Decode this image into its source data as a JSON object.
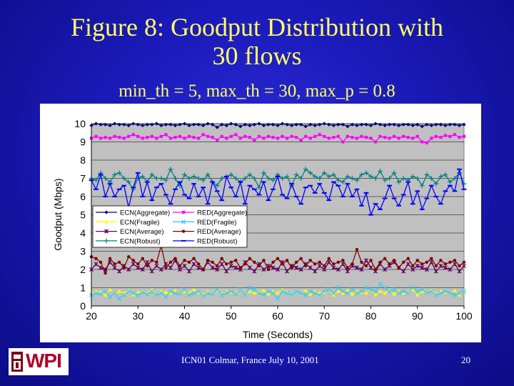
{
  "slide": {
    "title_line1": "Figure 8: Goodput Distribution with",
    "title_line2": "30 flows",
    "subtitle": "min_th = 5, max_th = 30, max_p = 0.8",
    "footer": "ICN01 Colmar, France  July 10, 2001",
    "page_number": "20",
    "logo_text": "WPI"
  },
  "colors": {
    "title": "#ffff66",
    "plot_bg": "#c0c0c0",
    "ecn_aggregate": "#000080",
    "red_aggregate": "#ff00ff",
    "ecn_fragile": "#ffff00",
    "red_fragile": "#33ccff",
    "ecn_average": "#660066",
    "red_average": "#800000",
    "ecn_robust": "#008080",
    "red_robust": "#0000ff"
  },
  "chart_data": {
    "type": "line",
    "title": "",
    "xlabel": "Time (Seconds)",
    "ylabel": "Goodput (Mbps)",
    "xlim": [
      20,
      100
    ],
    "ylim": [
      0,
      10
    ],
    "xticks": [
      "20",
      "30",
      "40",
      "50",
      "60",
      "70",
      "80",
      "90",
      "100"
    ],
    "yticks": [
      "0",
      "1",
      "2",
      "3",
      "4",
      "5",
      "6",
      "7",
      "8",
      "9",
      "10"
    ],
    "grid": true,
    "legend_position": "lower-left",
    "x": [
      20,
      21,
      22,
      23,
      24,
      25,
      26,
      27,
      28,
      29,
      30,
      31,
      32,
      33,
      34,
      35,
      36,
      37,
      38,
      39,
      40,
      41,
      42,
      43,
      44,
      45,
      46,
      47,
      48,
      49,
      50,
      51,
      52,
      53,
      54,
      55,
      56,
      57,
      58,
      59,
      60,
      61,
      62,
      63,
      64,
      65,
      66,
      67,
      68,
      69,
      70,
      71,
      72,
      73,
      74,
      75,
      76,
      77,
      78,
      79,
      80,
      81,
      82,
      83,
      84,
      85,
      86,
      87,
      88,
      89,
      90,
      91,
      92,
      93,
      94,
      95,
      96,
      97,
      98,
      99,
      100
    ],
    "series": [
      {
        "name": "ECN(Aggregate)",
        "marker": "diamond",
        "values": [
          9.9,
          10.0,
          9.95,
          9.95,
          9.9,
          10.0,
          9.95,
          9.95,
          9.9,
          10.0,
          9.95,
          9.9,
          9.95,
          9.95,
          10.0,
          9.9,
          9.95,
          9.95,
          9.9,
          9.95,
          10.0,
          9.9,
          9.95,
          9.95,
          9.9,
          10.0,
          9.95,
          9.8,
          9.95,
          9.9,
          10.0,
          9.95,
          9.85,
          9.95,
          9.9,
          9.95,
          10.0,
          9.9,
          9.95,
          9.95,
          9.9,
          10.0,
          9.95,
          9.9,
          9.95,
          9.95,
          9.85,
          9.95,
          9.9,
          9.95,
          10.0,
          9.95,
          9.9,
          9.95,
          9.95,
          9.85,
          9.95,
          9.9,
          9.95,
          9.95,
          9.9,
          10.0,
          9.95,
          9.9,
          9.95,
          9.95,
          9.9,
          9.95,
          9.95,
          9.9,
          9.95,
          9.85,
          9.95,
          9.9,
          9.95,
          9.95,
          9.9,
          9.95,
          9.95,
          9.9,
          9.95
        ]
      },
      {
        "name": "RED(Aggregate)",
        "marker": "square",
        "values": [
          9.2,
          9.3,
          9.2,
          9.25,
          9.2,
          9.3,
          9.25,
          9.2,
          9.3,
          9.4,
          9.3,
          9.2,
          9.25,
          9.3,
          9.2,
          9.3,
          9.4,
          9.2,
          9.25,
          9.3,
          9.2,
          9.3,
          9.25,
          9.2,
          9.4,
          9.3,
          9.25,
          9.1,
          9.3,
          9.2,
          9.3,
          9.4,
          9.2,
          9.3,
          9.25,
          9.1,
          9.3,
          9.2,
          9.3,
          9.25,
          9.2,
          9.3,
          9.2,
          9.3,
          9.25,
          9.1,
          9.3,
          9.2,
          9.3,
          9.4,
          9.3,
          9.2,
          9.25,
          9.3,
          9.0,
          9.3,
          9.25,
          9.2,
          9.3,
          9.25,
          9.2,
          9.0,
          9.3,
          9.25,
          9.2,
          9.3,
          9.2,
          9.3,
          9.25,
          9.2,
          9.3,
          9.0,
          8.95,
          9.2,
          9.3,
          9.25,
          9.35,
          9.3,
          9.4,
          9.25,
          9.3
        ]
      },
      {
        "name": "ECN(Fragile)",
        "marker": "triangle",
        "values": [
          0.7,
          0.8,
          0.75,
          0.6,
          0.9,
          0.7,
          0.8,
          0.7,
          0.85,
          0.6,
          0.75,
          0.8,
          0.7,
          0.9,
          0.6,
          0.8,
          0.75,
          0.7,
          0.85,
          0.65,
          0.8,
          0.7,
          0.9,
          0.75,
          0.6,
          0.8,
          0.7,
          0.85,
          0.65,
          0.8,
          0.75,
          0.7,
          0.9,
          0.6,
          0.8,
          0.7,
          0.75,
          0.85,
          0.65,
          0.8,
          0.7,
          0.9,
          0.75,
          0.6,
          0.8,
          0.7,
          0.85,
          0.65,
          0.8,
          0.7,
          0.75,
          0.9,
          0.6,
          0.8,
          0.7,
          0.85,
          0.65,
          0.8,
          0.75,
          0.7,
          0.9,
          0.6,
          0.8,
          0.7,
          0.85,
          0.65,
          0.8,
          0.7,
          0.75,
          0.9,
          0.6,
          0.8,
          0.7,
          0.85,
          0.65,
          0.8,
          0.75,
          0.7,
          0.85,
          0.6,
          0.8
        ]
      },
      {
        "name": "RED(Fragile)",
        "marker": "x",
        "values": [
          0.6,
          0.7,
          0.65,
          0.8,
          0.5,
          0.7,
          0.4,
          0.6,
          0.8,
          0.7,
          0.6,
          0.75,
          0.65,
          0.8,
          0.6,
          0.7,
          0.5,
          0.8,
          0.7,
          0.65,
          0.9,
          0.6,
          0.7,
          0.8,
          0.55,
          0.7,
          0.65,
          0.9,
          0.6,
          0.7,
          0.8,
          0.65,
          0.9,
          0.6,
          1.0,
          0.9,
          0.7,
          0.6,
          0.8,
          0.7,
          0.4,
          0.8,
          0.7,
          0.6,
          0.8,
          0.7,
          0.6,
          0.8,
          0.7,
          0.6,
          0.8,
          0.9,
          0.7,
          1.0,
          0.8,
          0.7,
          0.9,
          0.7,
          0.8,
          1.0,
          0.9,
          0.8,
          1.2,
          1.0,
          0.8,
          0.9,
          0.7,
          0.8,
          0.7,
          1.0,
          0.8,
          0.9,
          0.7,
          0.8,
          0.6,
          0.7,
          0.8,
          0.7,
          0.6,
          0.7,
          0.8
        ]
      },
      {
        "name": "ECN(Average)",
        "marker": "star",
        "values": [
          2.0,
          2.3,
          2.1,
          2.0,
          2.4,
          2.1,
          1.9,
          2.2,
          2.0,
          2.3,
          2.1,
          2.0,
          2.4,
          1.9,
          2.2,
          2.0,
          2.3,
          2.1,
          2.5,
          2.0,
          2.2,
          1.9,
          2.3,
          2.1,
          2.0,
          2.4,
          2.1,
          2.0,
          2.3,
          1.9,
          2.2,
          2.1,
          2.0,
          2.4,
          2.1,
          1.9,
          2.3,
          2.0,
          2.2,
          2.1,
          2.0,
          2.4,
          1.9,
          2.2,
          2.1,
          2.0,
          2.3,
          2.1,
          1.9,
          2.2,
          2.0,
          2.4,
          2.1,
          2.0,
          2.3,
          1.9,
          2.2,
          2.1,
          2.0,
          2.5,
          2.1,
          1.9,
          2.3,
          2.0,
          2.2,
          2.4,
          2.1,
          1.9,
          2.3,
          2.0,
          2.2,
          2.1,
          2.0,
          2.4,
          1.9,
          2.2,
          2.1,
          2.0,
          2.3,
          1.9,
          2.2
        ]
      },
      {
        "name": "RED(Average)",
        "marker": "circle",
        "values": [
          2.7,
          2.6,
          2.4,
          1.8,
          2.6,
          2.3,
          2.4,
          2.1,
          2.7,
          2.5,
          2.3,
          2.6,
          2.2,
          2.5,
          2.4,
          3.3,
          2.1,
          2.4,
          2.6,
          2.2,
          2.5,
          2.4,
          2.6,
          2.3,
          2.0,
          2.5,
          2.4,
          2.2,
          2.6,
          2.3,
          2.4,
          2.5,
          2.1,
          2.3,
          2.6,
          2.4,
          2.2,
          2.5,
          2.0,
          2.4,
          2.6,
          2.3,
          2.5,
          2.1,
          2.4,
          2.6,
          2.2,
          2.5,
          2.3,
          2.4,
          2.2,
          2.6,
          2.3,
          2.4,
          2.5,
          2.1,
          2.3,
          3.1,
          2.4,
          2.2,
          2.5,
          2.0,
          2.4,
          2.6,
          2.3,
          2.5,
          2.1,
          2.4,
          2.6,
          2.2,
          2.5,
          2.3,
          2.4,
          2.6,
          2.2,
          2.5,
          2.3,
          2.4,
          2.5,
          2.2,
          2.4
        ]
      },
      {
        "name": "ECN(Robust)",
        "marker": "plus",
        "values": [
          7.0,
          6.9,
          7.3,
          7.0,
          6.8,
          7.2,
          7.3,
          7.0,
          6.8,
          6.4,
          7.0,
          7.1,
          6.8,
          7.2,
          7.0,
          7.0,
          6.9,
          7.5,
          7.0,
          6.6,
          7.2,
          7.0,
          7.1,
          7.0,
          6.9,
          7.2,
          6.8,
          6.6,
          7.0,
          7.1,
          7.2,
          7.0,
          6.8,
          7.0,
          7.2,
          7.0,
          6.5,
          7.3,
          7.0,
          6.9,
          7.2,
          7.0,
          7.1,
          6.6,
          7.2,
          7.0,
          7.5,
          7.3,
          7.1,
          7.0,
          7.3,
          7.1,
          7.2,
          6.9,
          6.8,
          7.1,
          7.0,
          6.9,
          7.2,
          7.3,
          7.1,
          7.0,
          7.4,
          6.9,
          7.0,
          7.3,
          6.8,
          7.0,
          6.9,
          7.1,
          7.0,
          6.6,
          7.2,
          7.0,
          6.7,
          7.1,
          7.2,
          6.8,
          7.0,
          7.3,
          6.7
        ]
      },
      {
        "name": "RED(Robust)",
        "marker": "dash",
        "values": [
          6.9,
          6.4,
          7.2,
          6.0,
          6.7,
          6.0,
          6.4,
          6.6,
          5.4,
          6.5,
          7.3,
          6.0,
          6.8,
          5.8,
          6.5,
          6.7,
          6.1,
          5.6,
          6.4,
          6.8,
          6.1,
          5.9,
          6.7,
          6.0,
          6.5,
          5.6,
          6.8,
          6.3,
          5.8,
          7.1,
          6.5,
          6.0,
          6.8,
          5.6,
          6.6,
          6.4,
          6.1,
          6.8,
          5.8,
          6.4,
          7.1,
          6.1,
          5.9,
          6.7,
          6.0,
          5.6,
          6.5,
          6.6,
          6.2,
          6.7,
          6.2,
          5.8,
          6.8,
          6.6,
          6.0,
          6.7,
          6.0,
          6.4,
          5.5,
          6.2,
          5.0,
          5.6,
          5.3,
          5.9,
          6.6,
          5.9,
          5.5,
          6.1,
          6.8,
          5.6,
          6.3,
          5.3,
          5.9,
          6.6,
          6.0,
          5.6,
          6.3,
          6.6,
          6.3,
          7.5,
          6.4
        ]
      }
    ]
  }
}
